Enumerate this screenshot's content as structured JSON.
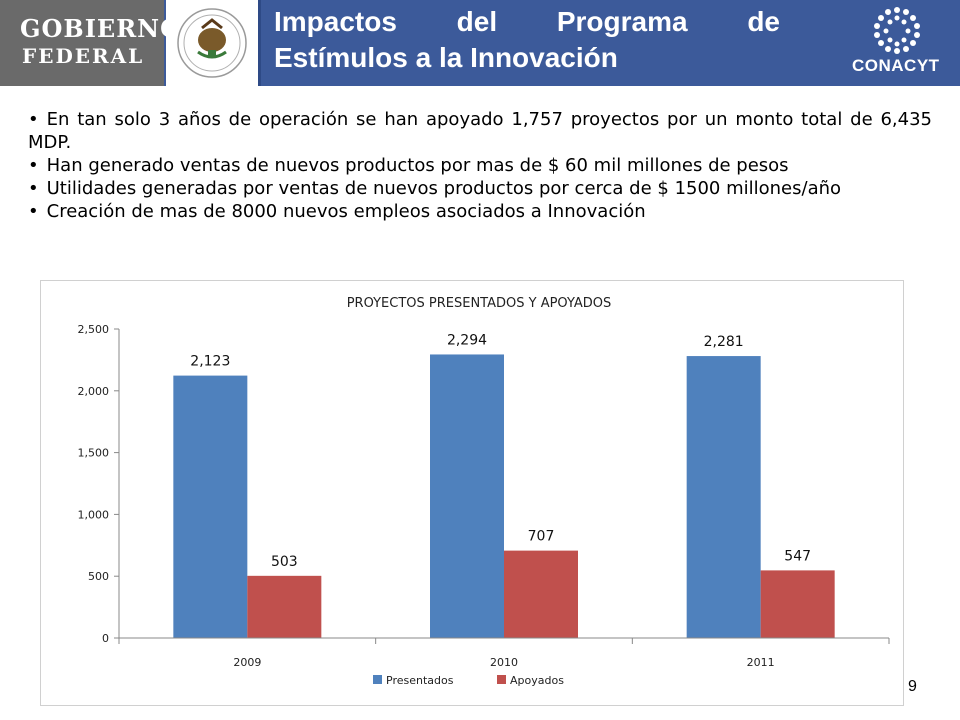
{
  "header": {
    "logo_line1": "GOBIERNO",
    "logo_line2": "FEDERAL",
    "title_line1": "Impactos del Programa de",
    "title_line2": "Estímulos a la Innovación",
    "right_logo_text": "CONACYT",
    "bar_color": "#3c5a9a"
  },
  "bullets": [
    "En tan solo 3 años de operación se han apoyado 1,757 proyectos por un monto total de 6,435 MDP.",
    "Han generado ventas de nuevos productos por mas de $ 60 mil millones de pesos",
    "Utilidades generadas por ventas de nuevos productos por cerca de $ 1500 millones/año",
    "Creación de mas de 8000 nuevos empleos asociados a Innovación"
  ],
  "chart_data": {
    "type": "bar",
    "title": "PROYECTOS PRESENTADOS Y APOYADOS",
    "categories": [
      "2009",
      "2010",
      "2011"
    ],
    "series": [
      {
        "name": "Presentados",
        "values": [
          2123,
          2294,
          2281
        ],
        "labels": [
          "2,123",
          "2,294",
          "2,281"
        ],
        "color": "#4f81bd"
      },
      {
        "name": "Apoyados",
        "values": [
          503,
          707,
          547
        ],
        "labels": [
          "503",
          "707",
          "547"
        ],
        "color": "#c0504d"
      }
    ],
    "ylim": [
      0,
      2500
    ],
    "yticks": [
      0,
      500,
      1000,
      1500,
      2000,
      2500
    ],
    "ytick_labels": [
      "0",
      "500",
      "1,000",
      "1,500",
      "2,000",
      "2,500"
    ],
    "xlabel": "",
    "ylabel": "",
    "grid": false,
    "legend_position": "bottom"
  },
  "page_number": "9"
}
